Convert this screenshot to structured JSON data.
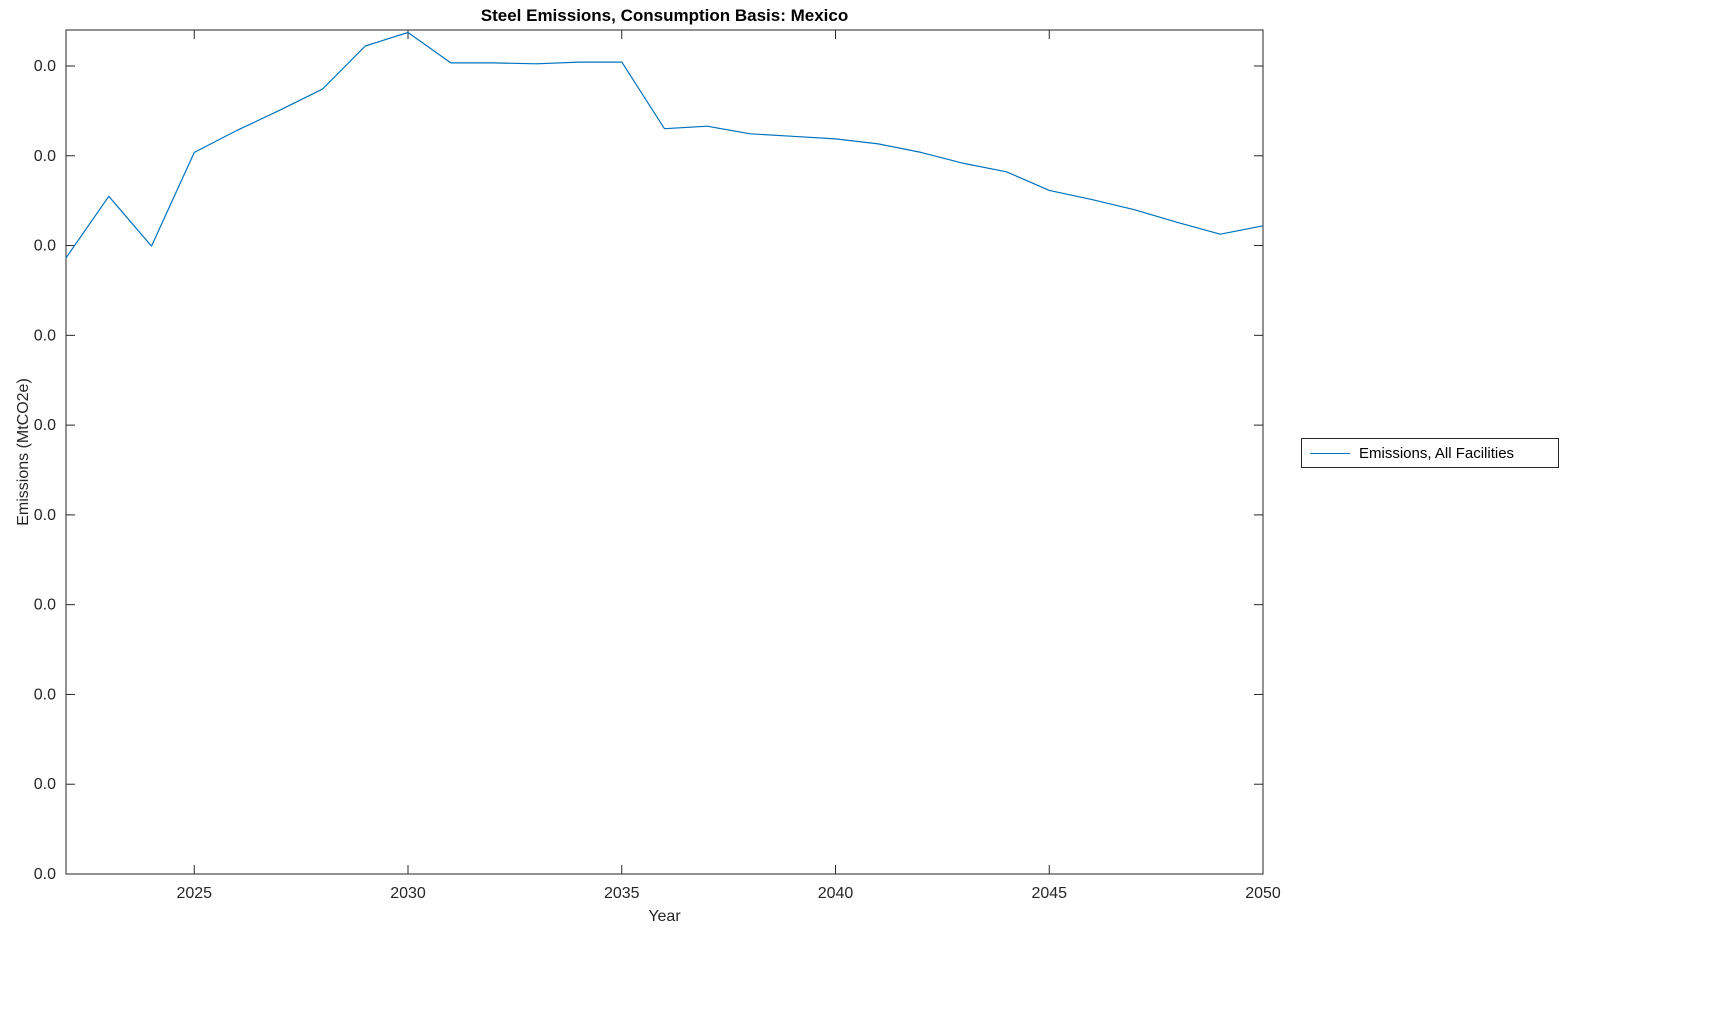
{
  "chart_data": {
    "type": "line",
    "title": "Steel Emissions, Consumption Basis: Mexico",
    "xlabel": "Year",
    "ylabel": "Emissions (MtCO2e)",
    "xlim": [
      2022,
      2050
    ],
    "x_ticks": [
      "2025",
      "2030",
      "2035",
      "2040",
      "2045",
      "2050"
    ],
    "y_tick_labels": [
      "0.0",
      "0.0",
      "0.0",
      "0.0",
      "0.0",
      "0.0",
      "0.0",
      "0.0",
      "0.0",
      "0.0"
    ],
    "grid": false,
    "legend_position": "right-outside",
    "x": [
      2022,
      2023,
      2024,
      2025,
      2026,
      2027,
      2028,
      2029,
      2030,
      2031,
      2032,
      2033,
      2034,
      2035,
      2036,
      2037,
      2038,
      2039,
      2040,
      2041,
      2042,
      2043,
      2044,
      2045,
      2046,
      2047,
      2048,
      2049,
      2050
    ],
    "series": [
      {
        "name": "Emissions, All Facilities",
        "color": "#0072BD",
        "values_normalized": [
          0.73,
          0.803,
          0.744,
          0.855,
          0.881,
          0.905,
          0.93,
          0.981,
          0.997,
          0.961,
          0.961,
          0.96,
          0.962,
          0.962,
          0.883,
          0.886,
          0.877,
          0.874,
          0.871,
          0.865,
          0.855,
          0.842,
          0.832,
          0.81,
          0.799,
          0.787,
          0.772,
          0.758,
          0.768
        ]
      }
    ]
  },
  "legend": {
    "entries": [
      {
        "label": "Emissions, All Facilities",
        "color": "#0072BD"
      }
    ]
  },
  "colors": {
    "axis": "#262626",
    "background": "#ffffff"
  }
}
